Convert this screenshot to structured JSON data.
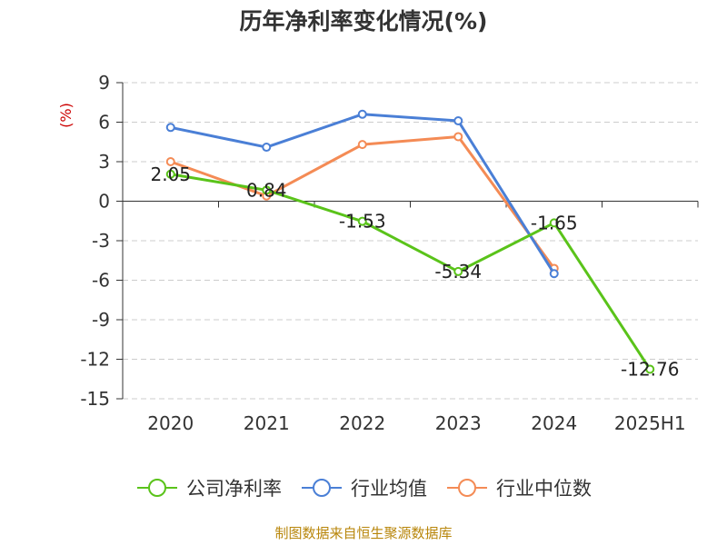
{
  "chart_data": {
    "type": "line",
    "title": "历年净利率变化情况(%)",
    "ylabel": "(%)",
    "xlabel": "",
    "categories": [
      "2020",
      "2021",
      "2022",
      "2023",
      "2024",
      "2025H1"
    ],
    "ylim": [
      -15,
      9
    ],
    "yticks": [
      9,
      6,
      3,
      0,
      -3,
      -6,
      -9,
      -12,
      -15
    ],
    "grid": true,
    "legend_position": "bottom",
    "series": [
      {
        "name": "公司净利率",
        "color": "#5ac31a",
        "values": [
          2.05,
          0.84,
          -1.53,
          -5.34,
          -1.65,
          -12.76
        ],
        "labels": [
          "2.05",
          "0.84",
          "-1.53",
          "-5.34",
          "-1.65",
          "-12.76"
        ]
      },
      {
        "name": "行业均值",
        "color": "#4a7fd6",
        "values": [
          5.6,
          4.1,
          6.6,
          6.1,
          -5.5,
          null
        ]
      },
      {
        "name": "行业中位数",
        "color": "#f48b55",
        "values": [
          3.0,
          0.4,
          4.3,
          4.9,
          -5.1,
          null
        ]
      }
    ]
  },
  "footer": {
    "source": "制图数据来自恒生聚源数据库"
  }
}
